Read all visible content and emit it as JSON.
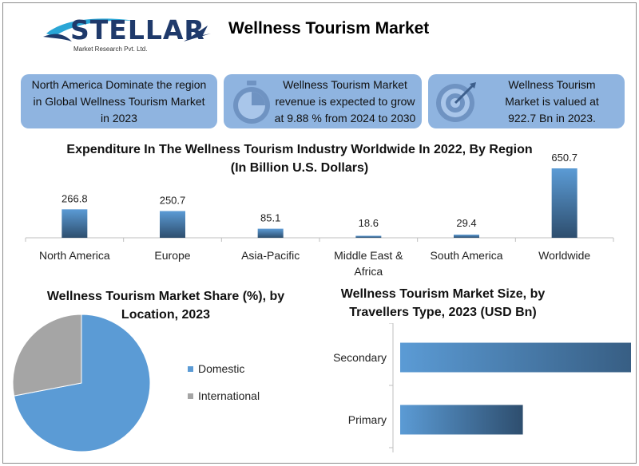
{
  "brand": {
    "name": "STELLAR",
    "tagline": "Market Research Pvt. Ltd."
  },
  "title": "Wellness Tourism Market",
  "cards": [
    {
      "text": "North America Dominate the region in Global Wellness Tourism Market in 2023"
    },
    {
      "text": "Wellness Tourism Market revenue is expected to grow at 9.88 % from 2024 to 2030",
      "icon": "stopwatch-icon"
    },
    {
      "text": "Wellness Tourism Market is valued at 922.7 Bn in 2023.",
      "icon": "target-icon"
    }
  ],
  "colors": {
    "card_bg": "#8fb4e0",
    "bar_light": "#5b9bd5",
    "bar_dark": "#2e4e6e",
    "pie_domestic": "#5b9bd5",
    "pie_international": "#a5a5a5"
  },
  "chart_data": [
    {
      "type": "bar",
      "title": "Expenditure In The Wellness Tourism Industry Worldwide In 2022, By Region (In Billion U.S. Dollars)",
      "categories": [
        "North America",
        "Europe",
        "Asia-Pacific",
        "Middle East & Africa",
        "South America",
        "Worldwide"
      ],
      "values": [
        266.8,
        250.7,
        85.1,
        18.6,
        29.4,
        650.7
      ],
      "data_labels": [
        "266.8",
        "250.7",
        "85.1",
        "18.6",
        "29.4",
        "650.7"
      ],
      "ylim": [
        0,
        650.7
      ],
      "grid": false
    },
    {
      "type": "pie",
      "title": "Wellness Tourism Market Share (%), by Location, 2023",
      "labels": [
        "Domestic",
        "International"
      ],
      "values": [
        72,
        28
      ],
      "legend_position": "right"
    },
    {
      "type": "bar",
      "orientation": "horizontal",
      "title": "Wellness Tourism Market Size, by Travellers Type, 2023 (USD Bn)",
      "categories": [
        "Secondary",
        "Primary"
      ],
      "values": [
        625,
        262
      ],
      "xlim": [
        0,
        650
      ],
      "grid": false
    }
  ]
}
